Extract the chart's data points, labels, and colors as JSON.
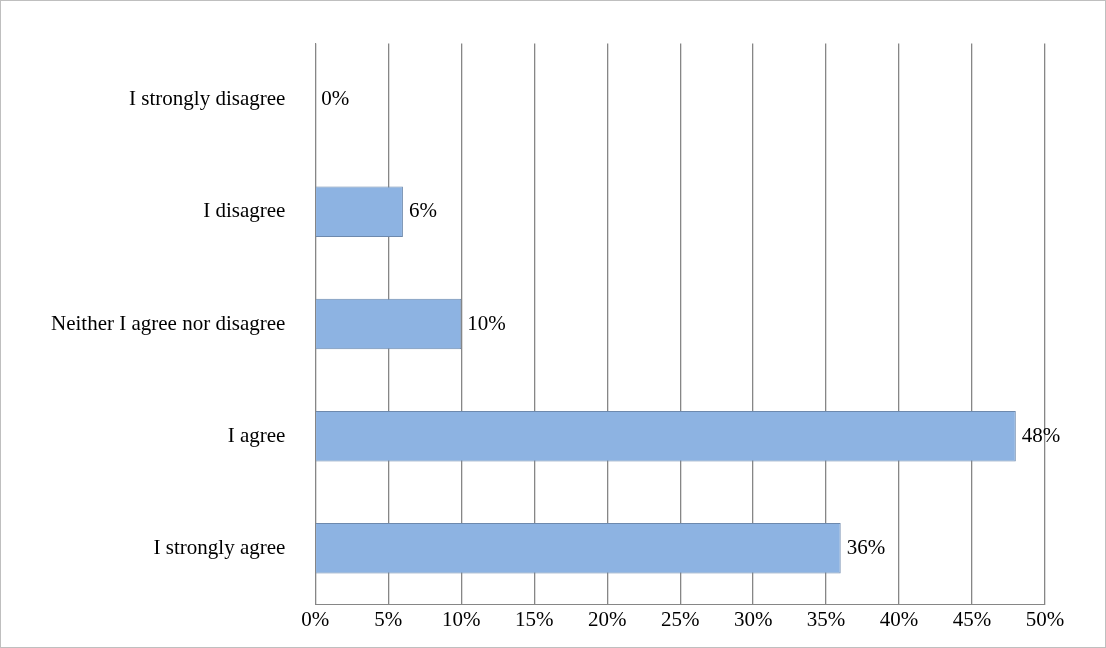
{
  "chart_data": {
    "type": "bar",
    "orientation": "horizontal",
    "categories": [
      "I strongly disagree",
      "I disagree",
      "Neither I agree nor disagree",
      "I agree",
      "I strongly agree"
    ],
    "values": [
      0,
      6,
      10,
      48,
      36
    ],
    "value_labels": [
      "0%",
      "6%",
      "10%",
      "48%",
      "36%"
    ],
    "color": "#8db3e2",
    "xlim": [
      0,
      50
    ],
    "xticks": [
      {
        "value": 0,
        "label": "0%"
      },
      {
        "value": 5,
        "label": "5%"
      },
      {
        "value": 10,
        "label": "10%"
      },
      {
        "value": 15,
        "label": "15%"
      },
      {
        "value": 20,
        "label": "20%"
      },
      {
        "value": 25,
        "label": "25%"
      },
      {
        "value": 30,
        "label": "30%"
      },
      {
        "value": 35,
        "label": "35%"
      },
      {
        "value": 40,
        "label": "40%"
      },
      {
        "value": 45,
        "label": "45%"
      },
      {
        "value": 50,
        "label": "50%"
      }
    ],
    "grid": "x",
    "legend": false
  }
}
